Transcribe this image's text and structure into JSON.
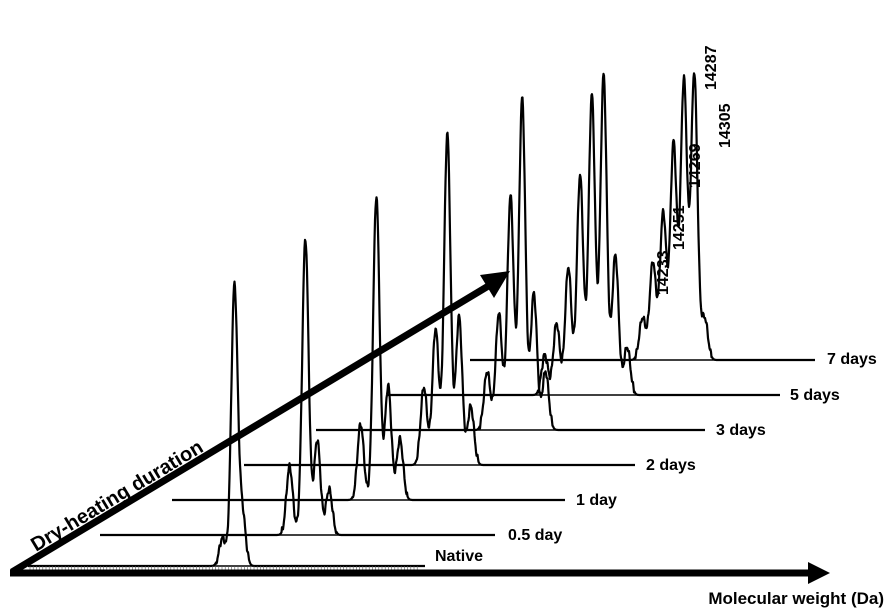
{
  "chart_data": {
    "type": "line",
    "title": "",
    "xlabel": "Molecular weight (Da)",
    "diagonal_label": "Dry-heating duration",
    "series": [
      {
        "name": "Native",
        "peaks": [
          {
            "rel_pos": 0.49,
            "height": 0.08
          },
          {
            "rel_pos": 0.52,
            "height": 0.8
          },
          {
            "rel_pos": 0.54,
            "height": 0.15
          }
        ]
      },
      {
        "name": "0.5 day",
        "peaks": [
          {
            "rel_pos": 0.48,
            "height": 0.18
          },
          {
            "rel_pos": 0.52,
            "height": 0.78
          },
          {
            "rel_pos": 0.55,
            "height": 0.25
          },
          {
            "rel_pos": 0.58,
            "height": 0.12
          }
        ]
      },
      {
        "name": "1 day",
        "peaks": [
          {
            "rel_pos": 0.48,
            "height": 0.2
          },
          {
            "rel_pos": 0.52,
            "height": 0.8
          },
          {
            "rel_pos": 0.55,
            "height": 0.3
          },
          {
            "rel_pos": 0.58,
            "height": 0.16
          }
        ]
      },
      {
        "name": "2 days",
        "peaks": [
          {
            "rel_pos": 0.46,
            "height": 0.2
          },
          {
            "rel_pos": 0.49,
            "height": 0.35
          },
          {
            "rel_pos": 0.52,
            "height": 0.85
          },
          {
            "rel_pos": 0.55,
            "height": 0.38
          },
          {
            "rel_pos": 0.58,
            "height": 0.15
          }
        ]
      },
      {
        "name": "3 days",
        "peaks": [
          {
            "rel_pos": 0.44,
            "height": 0.15
          },
          {
            "rel_pos": 0.47,
            "height": 0.3
          },
          {
            "rel_pos": 0.5,
            "height": 0.6
          },
          {
            "rel_pos": 0.53,
            "height": 0.85
          },
          {
            "rel_pos": 0.56,
            "height": 0.35
          },
          {
            "rel_pos": 0.59,
            "height": 0.15
          }
        ]
      },
      {
        "name": "5 days",
        "peaks": [
          {
            "rel_pos": 0.4,
            "height": 0.1
          },
          {
            "rel_pos": 0.43,
            "height": 0.18
          },
          {
            "rel_pos": 0.46,
            "height": 0.32
          },
          {
            "rel_pos": 0.49,
            "height": 0.55
          },
          {
            "rel_pos": 0.52,
            "height": 0.75
          },
          {
            "rel_pos": 0.55,
            "height": 0.8
          },
          {
            "rel_pos": 0.58,
            "height": 0.35
          },
          {
            "rel_pos": 0.61,
            "height": 0.12
          }
        ]
      },
      {
        "name": "7 days",
        "peaks": [
          {
            "rel_pos": 0.5,
            "height": 0.12
          },
          {
            "rel_pos": 0.53,
            "height": 0.28
          },
          {
            "rel_pos": 0.56,
            "height": 0.42
          },
          {
            "rel_pos": 0.59,
            "height": 0.62
          },
          {
            "rel_pos": 0.62,
            "height": 0.8
          },
          {
            "rel_pos": 0.65,
            "height": 0.82
          },
          {
            "rel_pos": 0.68,
            "height": 0.12
          }
        ]
      }
    ],
    "peak_labels": [
      "14233",
      "14251",
      "14269",
      "14287",
      "14305"
    ],
    "peak_label_series": "7 days",
    "grid": false,
    "legend": "none"
  }
}
